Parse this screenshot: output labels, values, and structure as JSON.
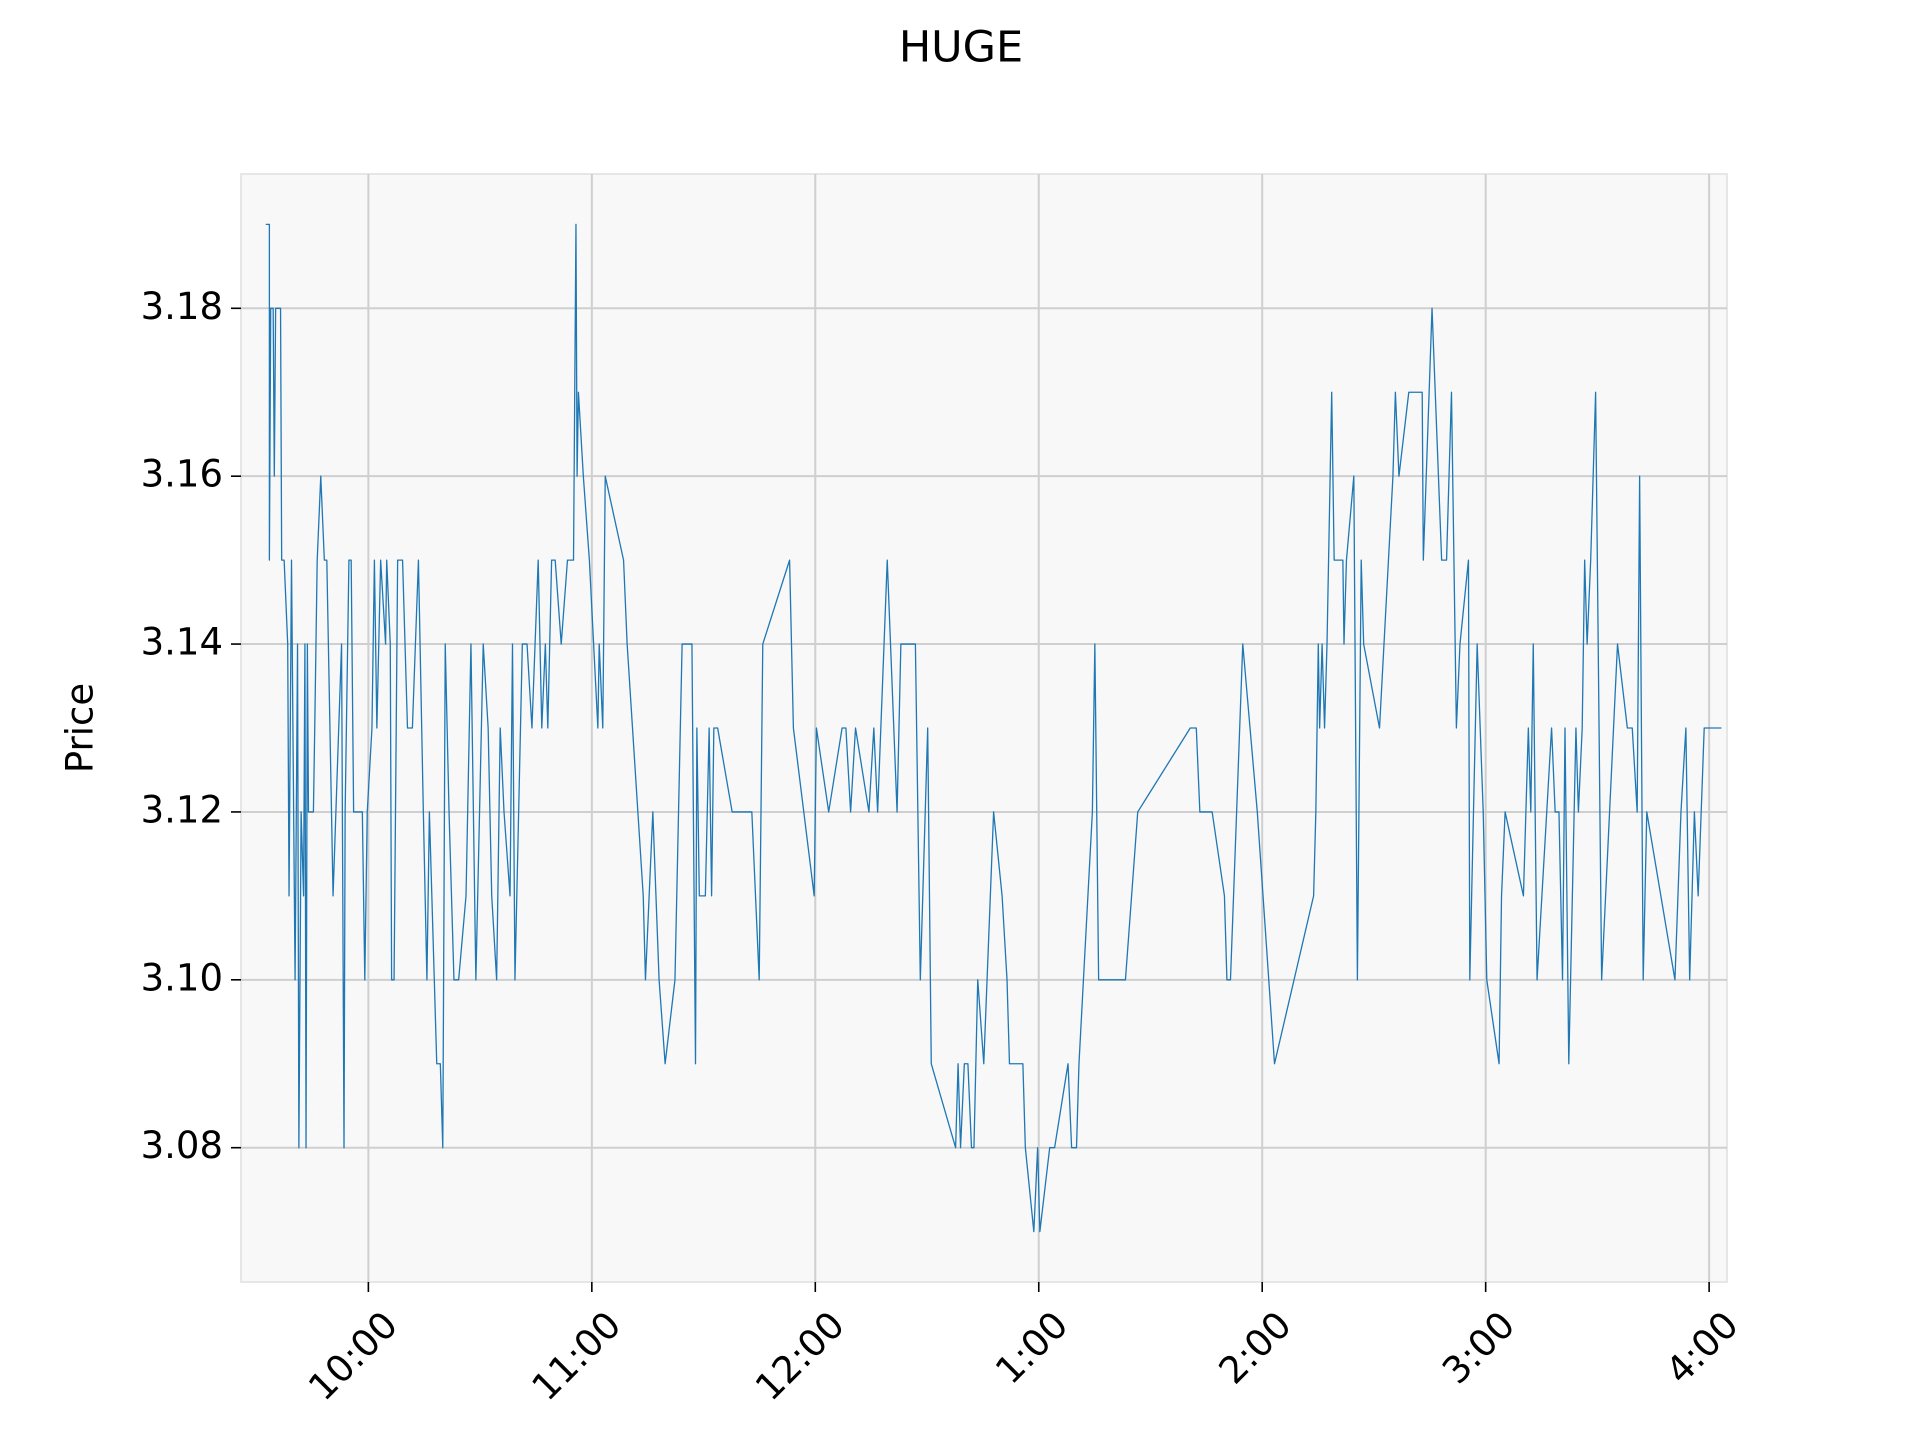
{
  "chart_data": {
    "type": "line",
    "title": "HUGE",
    "y_label": "Price",
    "color": "#1f77b4",
    "grid": true,
    "xlim": [
      9.43,
      16.08
    ],
    "ylim": [
      3.064,
      3.196
    ],
    "xticks": [
      {
        "value": 10,
        "label": "10:00"
      },
      {
        "value": 11,
        "label": "11:00"
      },
      {
        "value": 12,
        "label": "12:00"
      },
      {
        "value": 13,
        "label": "1:00"
      },
      {
        "value": 14,
        "label": "2:00"
      },
      {
        "value": 15,
        "label": "3:00"
      },
      {
        "value": 16,
        "label": "4:00"
      }
    ],
    "yticks": [
      3.08,
      {
        "value": 3.1,
        "label": "3.10"
      },
      3.12,
      3.14,
      3.16,
      3.18
    ],
    "x": [
      9.541,
      9.557,
      9.557,
      9.563,
      9.574,
      9.579,
      9.585,
      9.607,
      9.612,
      9.623,
      9.639,
      9.645,
      9.656,
      9.672,
      9.683,
      9.689,
      9.699,
      9.71,
      9.716,
      9.721,
      9.727,
      9.732,
      9.754,
      9.76,
      9.771,
      9.787,
      9.803,
      9.814,
      9.842,
      9.88,
      9.891,
      9.896,
      9.913,
      9.923,
      9.934,
      9.973,
      9.984,
      9.995,
      10.016,
      10.027,
      10.038,
      10.055,
      10.077,
      10.082,
      10.098,
      10.104,
      10.115,
      10.131,
      10.153,
      10.175,
      10.197,
      10.224,
      10.246,
      10.262,
      10.273,
      10.306,
      10.322,
      10.333,
      10.344,
      10.361,
      10.383,
      10.404,
      10.437,
      10.459,
      10.481,
      10.514,
      10.536,
      10.552,
      10.574,
      10.59,
      10.607,
      10.634,
      10.645,
      10.656,
      10.689,
      10.71,
      10.732,
      10.76,
      10.776,
      10.792,
      10.803,
      10.82,
      10.836,
      10.863,
      10.891,
      10.918,
      10.929,
      10.934,
      10.94,
      10.962,
      10.989,
      11.027,
      11.033,
      11.049,
      11.06,
      11.142,
      11.158,
      11.23,
      11.24,
      11.273,
      11.301,
      11.328,
      11.372,
      11.404,
      11.448,
      11.464,
      11.47,
      11.481,
      11.508,
      11.525,
      11.536,
      11.546,
      11.563,
      11.628,
      11.716,
      11.749,
      11.765,
      11.885,
      11.902,
      11.995,
      12.005,
      12.06,
      12.12,
      12.137,
      12.158,
      12.18,
      12.24,
      12.262,
      12.279,
      12.322,
      12.366,
      12.383,
      12.448,
      12.47,
      12.503,
      12.519,
      12.628,
      12.639,
      12.65,
      12.667,
      12.683,
      12.699,
      12.71,
      12.727,
      12.754,
      12.798,
      12.836,
      12.858,
      12.869,
      12.929,
      12.94,
      12.978,
      12.995,
      13.005,
      13.049,
      13.071,
      13.131,
      13.147,
      13.169,
      13.18,
      13.24,
      13.251,
      13.268,
      13.388,
      13.443,
      13.678,
      13.705,
      13.721,
      13.776,
      13.831,
      13.842,
      13.858,
      13.913,
      13.978,
      14.055,
      14.23,
      14.24,
      14.251,
      14.257,
      14.268,
      14.279,
      14.29,
      14.311,
      14.322,
      14.361,
      14.366,
      14.377,
      14.41,
      14.426,
      14.443,
      14.454,
      14.525,
      14.585,
      14.596,
      14.612,
      14.656,
      14.716,
      14.721,
      14.76,
      14.803,
      14.825,
      14.847,
      14.869,
      14.885,
      14.923,
      14.929,
      14.962,
      14.989,
      15.005,
      15.06,
      15.071,
      15.087,
      15.169,
      15.191,
      15.202,
      15.213,
      15.23,
      15.295,
      15.311,
      15.328,
      15.344,
      15.355,
      15.372,
      15.404,
      15.415,
      15.432,
      15.443,
      15.454,
      15.47,
      15.492,
      15.519,
      15.59,
      15.634,
      15.656,
      15.678,
      15.689,
      15.705,
      15.721,
      15.847,
      15.874,
      15.896,
      15.913,
      15.934,
      15.951,
      15.978,
      16.055
    ],
    "values": [
      3.19,
      3.19,
      3.15,
      3.18,
      3.18,
      3.16,
      3.18,
      3.18,
      3.15,
      3.15,
      3.14,
      3.11,
      3.15,
      3.1,
      3.14,
      3.08,
      3.12,
      3.11,
      3.14,
      3.08,
      3.14,
      3.12,
      3.12,
      3.13,
      3.15,
      3.16,
      3.15,
      3.15,
      3.11,
      3.14,
      3.08,
      3.12,
      3.15,
      3.15,
      3.12,
      3.12,
      3.1,
      3.12,
      3.13,
      3.15,
      3.13,
      3.15,
      3.14,
      3.15,
      3.14,
      3.1,
      3.1,
      3.15,
      3.15,
      3.13,
      3.13,
      3.15,
      3.12,
      3.1,
      3.12,
      3.09,
      3.09,
      3.08,
      3.14,
      3.12,
      3.1,
      3.1,
      3.11,
      3.14,
      3.1,
      3.14,
      3.13,
      3.11,
      3.1,
      3.13,
      3.12,
      3.11,
      3.14,
      3.1,
      3.14,
      3.14,
      3.13,
      3.15,
      3.13,
      3.14,
      3.13,
      3.15,
      3.15,
      3.14,
      3.15,
      3.15,
      3.19,
      3.16,
      3.17,
      3.16,
      3.15,
      3.13,
      3.14,
      3.13,
      3.16,
      3.15,
      3.14,
      3.11,
      3.1,
      3.12,
      3.1,
      3.09,
      3.1,
      3.14,
      3.14,
      3.09,
      3.13,
      3.11,
      3.11,
      3.13,
      3.11,
      3.13,
      3.13,
      3.12,
      3.12,
      3.1,
      3.14,
      3.15,
      3.13,
      3.11,
      3.13,
      3.12,
      3.13,
      3.13,
      3.12,
      3.13,
      3.12,
      3.13,
      3.12,
      3.15,
      3.12,
      3.14,
      3.14,
      3.1,
      3.13,
      3.09,
      3.08,
      3.09,
      3.08,
      3.09,
      3.09,
      3.08,
      3.08,
      3.1,
      3.09,
      3.12,
      3.11,
      3.1,
      3.09,
      3.09,
      3.08,
      3.07,
      3.08,
      3.07,
      3.08,
      3.08,
      3.09,
      3.08,
      3.08,
      3.09,
      3.12,
      3.14,
      3.1,
      3.1,
      3.12,
      3.13,
      3.13,
      3.12,
      3.12,
      3.11,
      3.1,
      3.1,
      3.14,
      3.12,
      3.09,
      3.11,
      3.12,
      3.14,
      3.13,
      3.14,
      3.13,
      3.14,
      3.17,
      3.15,
      3.15,
      3.14,
      3.15,
      3.16,
      3.1,
      3.15,
      3.14,
      3.13,
      3.16,
      3.17,
      3.16,
      3.17,
      3.17,
      3.15,
      3.18,
      3.15,
      3.15,
      3.17,
      3.13,
      3.14,
      3.15,
      3.1,
      3.14,
      3.12,
      3.1,
      3.09,
      3.11,
      3.12,
      3.11,
      3.13,
      3.12,
      3.14,
      3.1,
      3.13,
      3.12,
      3.12,
      3.1,
      3.13,
      3.09,
      3.13,
      3.12,
      3.13,
      3.15,
      3.14,
      3.15,
      3.17,
      3.1,
      3.14,
      3.13,
      3.13,
      3.12,
      3.16,
      3.1,
      3.12,
      3.1,
      3.12,
      3.13,
      3.1,
      3.12,
      3.11,
      3.13,
      3.13
    ]
  }
}
